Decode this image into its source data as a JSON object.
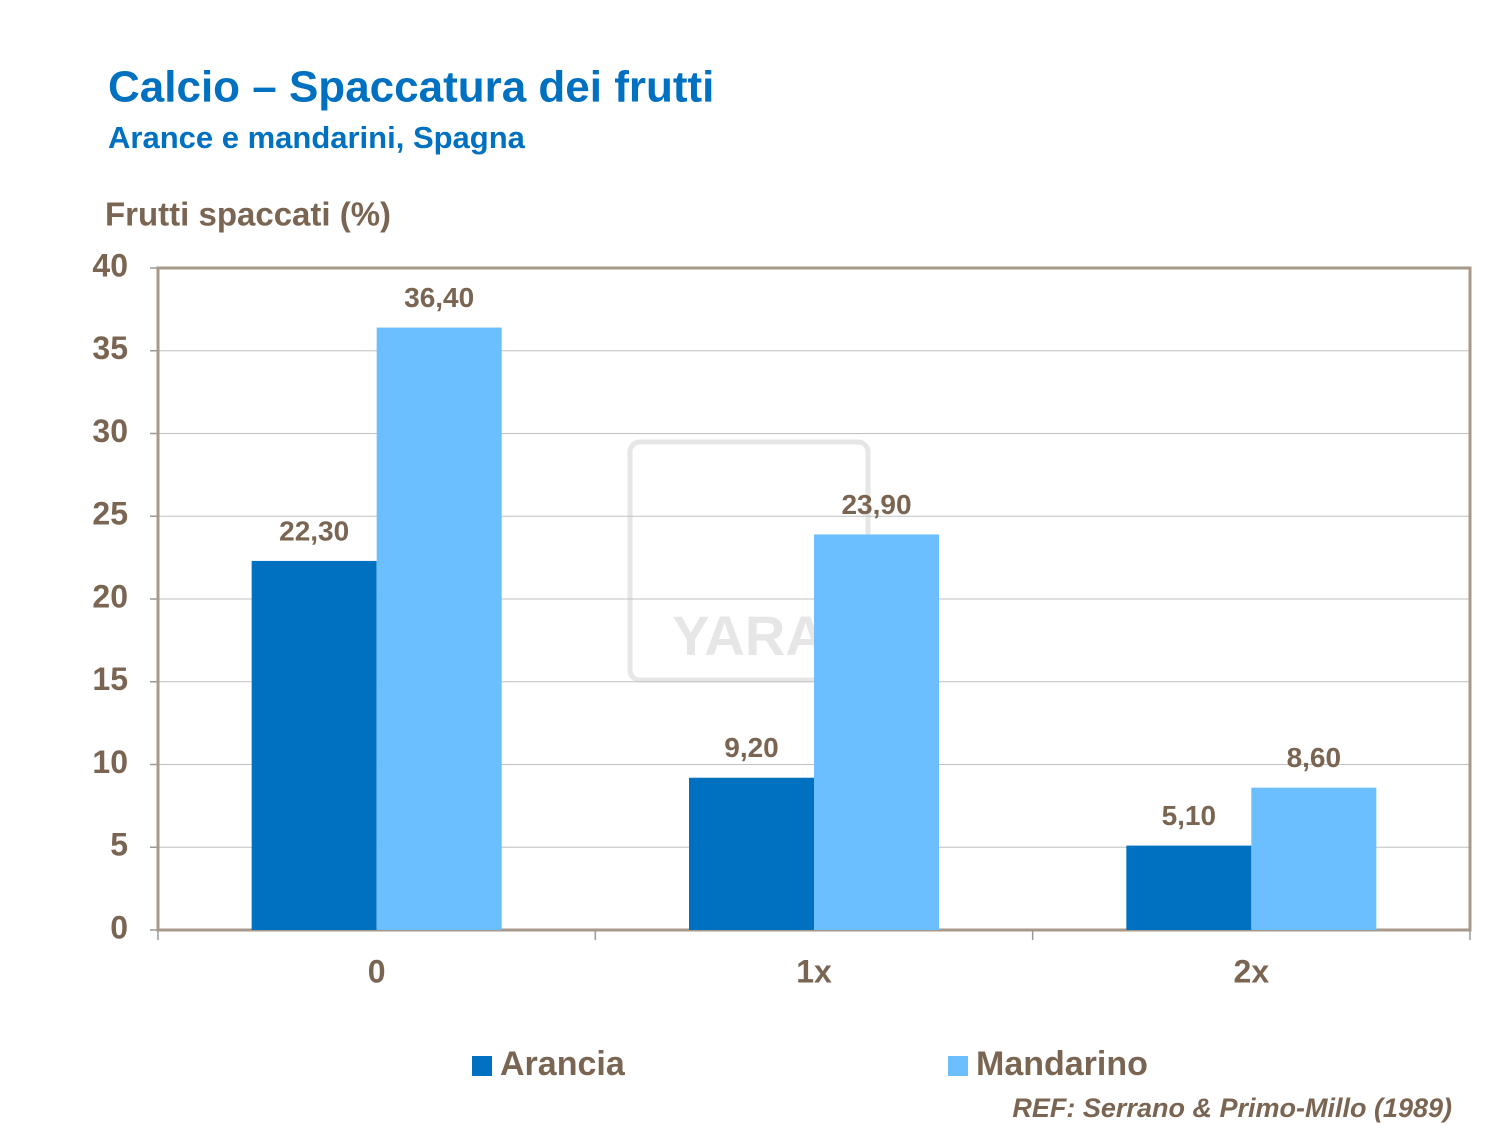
{
  "chart_data": {
    "type": "bar",
    "title": "Calcio – Spaccatura dei frutti",
    "subtitle": "Arance e mandarini, Spagna",
    "y_label": "Frutti spaccati (%)",
    "categories": [
      "0",
      "1x",
      "2x"
    ],
    "series": [
      {
        "name": "Arancia",
        "color": "#0070c0",
        "values": [
          22.3,
          9.2,
          5.1
        ],
        "value_labels": [
          "22,30",
          "9,20",
          "5,10"
        ]
      },
      {
        "name": "Mandarino",
        "color": "#6bbfff",
        "values": [
          36.4,
          23.9,
          8.6
        ],
        "value_labels": [
          "36,40",
          "23,90",
          "8,60"
        ]
      }
    ],
    "ylim": [
      0,
      40
    ],
    "yticks": [
      0,
      5,
      10,
      15,
      20,
      25,
      30,
      35,
      40
    ],
    "grid": true,
    "legend": "bottom",
    "reference": "REF: Serrano & Primo-Millo (1989)",
    "watermark": "YARA"
  }
}
